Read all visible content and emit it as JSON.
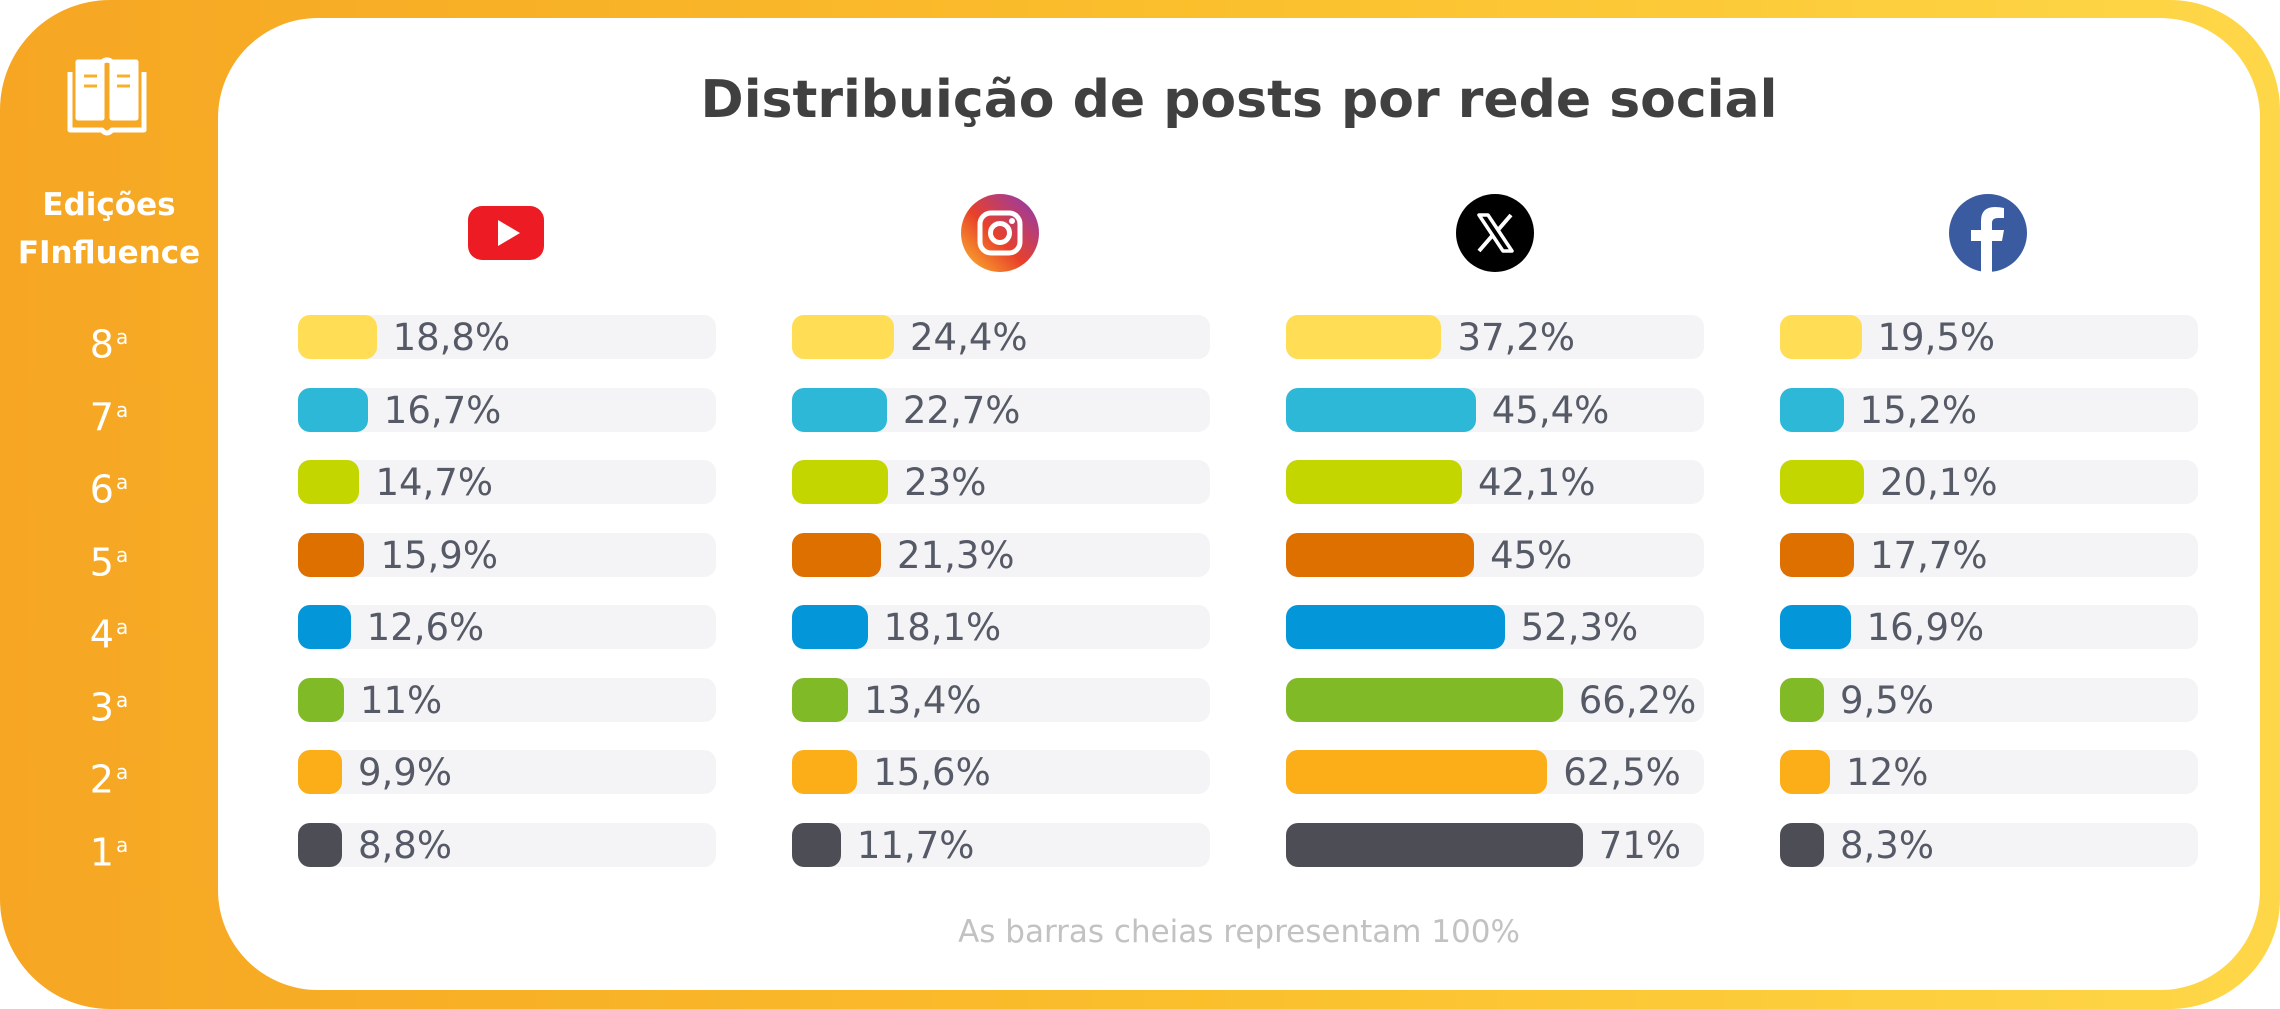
{
  "title": "Distribuição de posts por rede social",
  "footnote": "As barras cheias representam 100%",
  "sidebar": {
    "title_line1": "Edições",
    "title_line2": "FInfluence",
    "icon": "open-book-icon"
  },
  "editions": [
    {
      "num": "8",
      "sup": "a"
    },
    {
      "num": "7",
      "sup": "a"
    },
    {
      "num": "6",
      "sup": "a"
    },
    {
      "num": "5",
      "sup": "a"
    },
    {
      "num": "4",
      "sup": "a"
    },
    {
      "num": "3",
      "sup": "a"
    },
    {
      "num": "2",
      "sup": "a"
    },
    {
      "num": "1",
      "sup": "a"
    }
  ],
  "colors": {
    "frame": "#f6a623",
    "track": "#f4f4f6",
    "editions": [
      "#ffdd55",
      "#2eb8d8",
      "#c4d600",
      "#de7000",
      "#0396d9",
      "#80ba27",
      "#fbae17",
      "#4d4d55"
    ]
  },
  "chart_data": {
    "type": "bar",
    "orientation": "horizontal",
    "scale_max": 100,
    "categories": [
      "8ª",
      "7ª",
      "6ª",
      "5ª",
      "4ª",
      "3ª",
      "2ª",
      "1ª"
    ],
    "series": [
      {
        "network": "YouTube",
        "icon": "youtube-icon",
        "values": [
          18.8,
          16.7,
          14.7,
          15.9,
          12.6,
          11,
          9.9,
          8.8
        ],
        "labels": [
          "18,8%",
          "16,7%",
          "14,7%",
          "15,9%",
          "12,6%",
          "11%",
          "9,9%",
          "8,8%"
        ]
      },
      {
        "network": "Instagram",
        "icon": "instagram-icon",
        "values": [
          24.4,
          22.7,
          23,
          21.3,
          18.1,
          13.4,
          15.6,
          11.7
        ],
        "labels": [
          "24,4%",
          "22,7%",
          "23%",
          "21,3%",
          "18,1%",
          "13,4%",
          "15,6%",
          "11,7%"
        ]
      },
      {
        "network": "X",
        "icon": "x-icon",
        "values": [
          37.2,
          45.4,
          42.1,
          45,
          52.3,
          66.2,
          62.5,
          71
        ],
        "labels": [
          "37,2%",
          "45,4%",
          "42,1%",
          "45%",
          "52,3%",
          "66,2%",
          "62,5%",
          "71%"
        ]
      },
      {
        "network": "Facebook",
        "icon": "facebook-icon",
        "values": [
          19.5,
          15.2,
          20.1,
          17.7,
          16.9,
          9.5,
          12,
          8.3
        ],
        "labels": [
          "19,5%",
          "15,2%",
          "20,1%",
          "17,7%",
          "16,9%",
          "9,5%",
          "12%",
          "8,3%"
        ]
      }
    ]
  }
}
